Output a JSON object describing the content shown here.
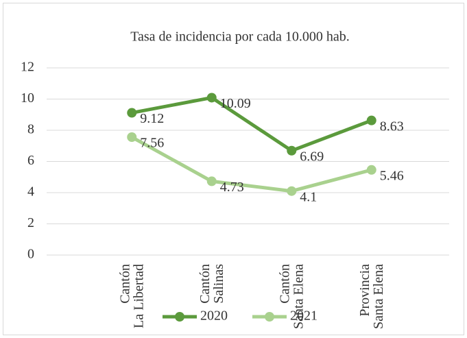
{
  "chart_data": {
    "type": "line",
    "title": "Tasa de incidencia por cada 10.000 hab.",
    "categories": [
      "Cantón La Libertad",
      "Cantón Salinas",
      "Cantón Santa Elena",
      "Provincia Santa Elena"
    ],
    "series": [
      {
        "name": "2020",
        "color": "#5b9a3c",
        "values": [
          9.12,
          10.09,
          6.69,
          8.63
        ]
      },
      {
        "name": "2021",
        "color": "#a9d18e",
        "values": [
          7.56,
          4.73,
          4.1,
          5.46
        ]
      }
    ],
    "ylim": [
      0,
      12
    ],
    "yticks": [
      0,
      2,
      4,
      6,
      8,
      10,
      12
    ],
    "grid": true,
    "legend": "bottom"
  }
}
